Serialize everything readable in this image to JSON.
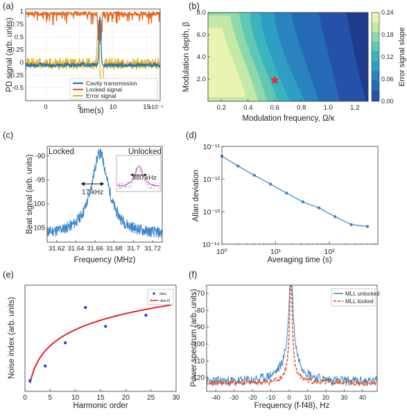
{
  "colors": {
    "cavity": "#1f77b4",
    "locked": "#e8641c",
    "error": "#f0b020",
    "line_blue": "#3b86c8",
    "fit_red": "#e8202a",
    "marker_blue": "#2f3cf0",
    "unlocked_red": "#e05a3a"
  },
  "chart_data": [
    {
      "panel": "(a)",
      "type": "line",
      "xlabel": "time(s)",
      "ylabel": "PD signal (arb. units)",
      "x_multiplier": "x10⁻⁴",
      "xlim": [
        -3,
        17
      ],
      "ylim": [
        -0.75,
        1.05
      ],
      "xticks": [
        0,
        5,
        10,
        15
      ],
      "yticks": [
        -0.5,
        -0.25,
        0,
        0.25,
        0.5,
        0.75,
        1
      ],
      "ytick_labels": [
        "-0.5",
        "-0.25",
        "0",
        "0.25",
        "0.5",
        "0.75",
        "1"
      ],
      "legend_position": "bottom-right",
      "series": [
        {
          "name": "Cavity transmission",
          "color": "#1f77b4"
        },
        {
          "name": "Locked signal",
          "color": "#e8641c"
        },
        {
          "name": "Error signal",
          "color": "#f0b020"
        }
      ]
    },
    {
      "panel": "(b)",
      "type": "heatmap",
      "xlabel": "Modulation frequency, Ω/κ",
      "ylabel": "Modulation depth, β",
      "colorbar_label": "Error signal slope",
      "xlim": [
        0.1,
        1.3
      ],
      "ylim": [
        0,
        8
      ],
      "xticks": [
        0.2,
        0.4,
        0.6,
        0.8,
        1.0,
        1.2
      ],
      "xtick_labels": [
        "0.2",
        "0.4",
        "0.6",
        "0.8",
        "1.0",
        "1.2"
      ],
      "yticks": [
        2,
        4,
        6,
        8
      ],
      "ytick_labels": [
        "2.0",
        "4.0",
        "6.0",
        "8.0"
      ],
      "colorbar_ticks": [
        "0.00",
        "0.06",
        "0.12",
        "0.18",
        "0.24"
      ],
      "optimum": {
        "x": 0.6,
        "y": 1.9
      }
    },
    {
      "panel": "(c)",
      "type": "line",
      "xlabel": "Frequency (MHz)",
      "ylabel": "Beat signal (arb. units)",
      "xlim": [
        31.61,
        31.73
      ],
      "ylim": [
        -108,
        -88
      ],
      "xticks": [
        31.62,
        31.64,
        31.66,
        31.68,
        31.7,
        31.72
      ],
      "xtick_labels": [
        "31.62",
        "31.64",
        "31.66",
        "31.68",
        "31.7",
        "31.72"
      ],
      "yticks": [
        -90,
        -95,
        -100,
        -105
      ],
      "ytick_labels": [
        "-90",
        "-95",
        "-100",
        "-105"
      ],
      "locked_label": "Locked",
      "unlocked_label": "Unlocked",
      "locked_width": "17 kHz",
      "unlocked_width": "880 kHz"
    },
    {
      "panel": "(d)",
      "type": "line",
      "log_x": true,
      "log_y": true,
      "xlabel": "Averaging time (s)",
      "ylabel": "Allan deviation",
      "xlim": [
        1,
        800
      ],
      "ylim": [
        1e-14,
        1e-11
      ],
      "x": [
        1,
        2,
        4,
        8,
        16,
        32,
        64,
        128,
        256,
        512
      ],
      "y": [
        5e-12,
        2.5e-12,
        1.3e-12,
        7e-13,
        3.7e-13,
        2e-13,
        1.3e-13,
        7e-14,
        4e-14,
        3.5e-14
      ],
      "xtick_labels": [
        "10⁰",
        "10¹",
        "10²"
      ],
      "ytick_labels": [
        "10⁻¹¹",
        "10⁻¹²",
        "10⁻¹³",
        "10⁻¹⁴"
      ]
    },
    {
      "panel": "(e)",
      "type": "scatter",
      "xlabel": "Harmonic order",
      "ylabel": "Noise index (arb. units)",
      "xlim": [
        0,
        30
      ],
      "xticks": [
        0,
        5,
        10,
        15,
        20,
        25,
        30
      ],
      "x": [
        1,
        4,
        8,
        12,
        16,
        24
      ],
      "y": [
        0.06,
        0.23,
        0.5,
        0.91,
        0.69,
        0.82
      ],
      "fit": "log",
      "legend": {
        "data": "data",
        "fit": "data fit"
      }
    },
    {
      "panel": "(f)",
      "type": "line",
      "xlabel": "Frequency (f-f48), Hz",
      "ylabel": "Power spectrum (arb. units)",
      "xlim": [
        -45,
        48
      ],
      "ylim": [
        -128,
        -65
      ],
      "xticks": [
        -40,
        -30,
        -20,
        -10,
        0,
        10,
        20,
        30,
        40
      ],
      "yticks": [
        -70,
        -80,
        -90,
        -100,
        -110,
        -120
      ],
      "legend_position": "top-right",
      "series": [
        {
          "name": "MLL unlocked",
          "color": "#3b86c8"
        },
        {
          "name": "MLL locked",
          "color": "#e05a3a"
        }
      ]
    }
  ]
}
